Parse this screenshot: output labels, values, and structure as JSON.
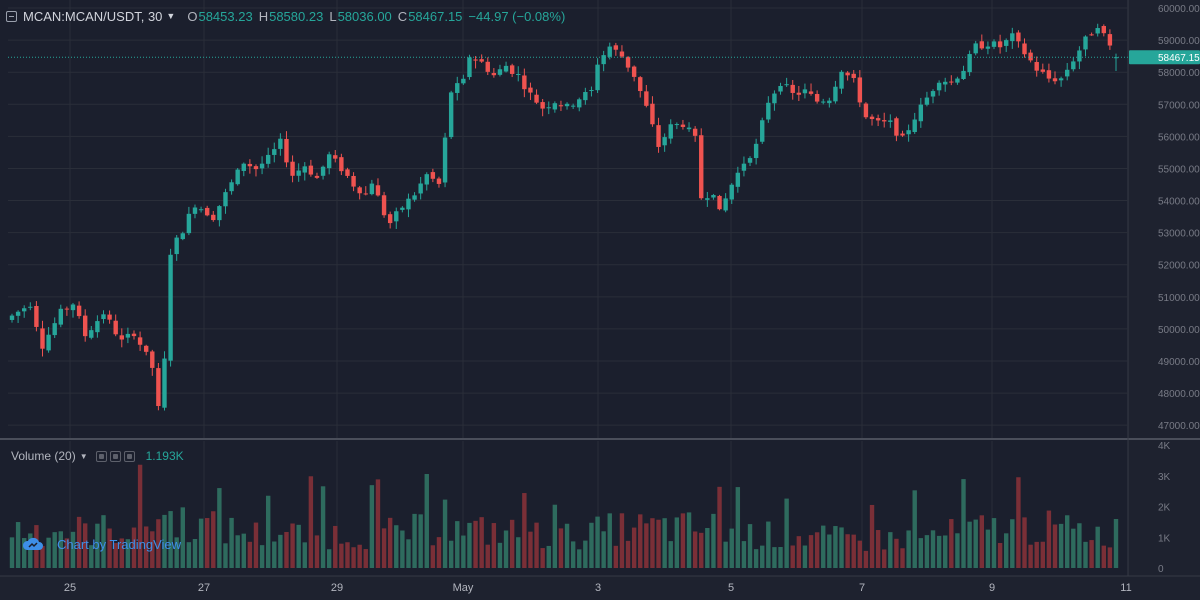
{
  "header": {
    "symbol": "MCAN:MCAN/USDT, 30",
    "open_label": "O",
    "open": "58453.23",
    "high_label": "H",
    "high": "58580.23",
    "low_label": "L",
    "low": "58036.00",
    "close_label": "C",
    "close": "58467.15",
    "change": "−44.97 (−0.08%)"
  },
  "volume_pane": {
    "title": "Volume (20)",
    "value": "1.193K"
  },
  "attribution": {
    "label": "Chart by TradingView"
  },
  "icons": {
    "symbol": "chart-symbol-icon",
    "caret": "chevron-down-icon",
    "attribution": "tradingview-cloud-icon",
    "pane_buttons": [
      "hide-icon",
      "settings-icon",
      "close-icon"
    ]
  },
  "colors": {
    "up": "#26a69a",
    "down": "#ef5350",
    "up_volume": "#2e6b5e",
    "down_volume": "#7a2f37",
    "background": "#1b1f2d",
    "grid": "#2a2e39",
    "last_price_line": "#26a69a"
  },
  "chart_data": {
    "type": "candlestick",
    "title": "MCAN:MCAN/USDT, 30",
    "x_tick_labels": [
      "25",
      "27",
      "29",
      "May",
      "3",
      "5",
      "7",
      "9",
      "11"
    ],
    "y_tick_labels": [
      "47000.00",
      "48000.00",
      "49000.00",
      "50000.00",
      "51000.00",
      "52000.00",
      "53000.00",
      "54000.00",
      "55000.00",
      "56000.00",
      "57000.00",
      "58000.00",
      "59000.00",
      "60000.00"
    ],
    "ylim": [
      46600,
      60250
    ],
    "volume_tick_labels": [
      "0",
      "1K",
      "2K",
      "3K",
      "4K"
    ],
    "volume_ylim": [
      0,
      4000
    ],
    "last_price": 58467.15,
    "last_price_label": "58467.15",
    "grid": true,
    "price_path": [
      [
        0,
        50400
      ],
      [
        3,
        50800
      ],
      [
        5,
        49500
      ],
      [
        8,
        50500
      ],
      [
        10,
        50800
      ],
      [
        12,
        49800
      ],
      [
        15,
        50500
      ],
      [
        18,
        49600
      ],
      [
        20,
        49900
      ],
      [
        23,
        48800
      ],
      [
        24,
        47500
      ],
      [
        25,
        49000
      ],
      [
        26,
        52400
      ],
      [
        28,
        53100
      ],
      [
        30,
        53900
      ],
      [
        33,
        53500
      ],
      [
        35,
        54200
      ],
      [
        38,
        55200
      ],
      [
        40,
        55000
      ],
      [
        42,
        55300
      ],
      [
        44,
        55800
      ],
      [
        46,
        54800
      ],
      [
        48,
        55100
      ],
      [
        50,
        54700
      ],
      [
        52,
        55400
      ],
      [
        54,
        55000
      ],
      [
        56,
        54500
      ],
      [
        58,
        54200
      ],
      [
        59,
        54600
      ],
      [
        61,
        53600
      ],
      [
        62,
        53300
      ],
      [
        64,
        53800
      ],
      [
        66,
        54200
      ],
      [
        68,
        54800
      ],
      [
        70,
        54500
      ],
      [
        71,
        55900
      ],
      [
        72,
        57400
      ],
      [
        74,
        57700
      ],
      [
        75,
        58500
      ],
      [
        77,
        58300
      ],
      [
        79,
        57900
      ],
      [
        81,
        58200
      ],
      [
        83,
        57900
      ],
      [
        85,
        57300
      ],
      [
        87,
        56900
      ],
      [
        89,
        57100
      ],
      [
        91,
        56900
      ],
      [
        93,
        57200
      ],
      [
        95,
        57400
      ],
      [
        96,
        58300
      ],
      [
        98,
        58800
      ],
      [
        100,
        58500
      ],
      [
        102,
        57900
      ],
      [
        104,
        56900
      ],
      [
        106,
        55700
      ],
      [
        108,
        56300
      ],
      [
        110,
        56400
      ],
      [
        112,
        55900
      ],
      [
        113,
        54100
      ],
      [
        115,
        54300
      ],
      [
        116,
        53600
      ],
      [
        118,
        54500
      ],
      [
        120,
        55200
      ],
      [
        122,
        55700
      ],
      [
        124,
        57100
      ],
      [
        126,
        57700
      ],
      [
        128,
        57300
      ],
      [
        130,
        57400
      ],
      [
        132,
        57100
      ],
      [
        134,
        57200
      ],
      [
        136,
        58100
      ],
      [
        138,
        57700
      ],
      [
        140,
        56600
      ],
      [
        142,
        56400
      ],
      [
        144,
        56400
      ],
      [
        146,
        55900
      ],
      [
        148,
        56600
      ],
      [
        150,
        57200
      ],
      [
        152,
        57800
      ],
      [
        154,
        57700
      ],
      [
        156,
        58100
      ],
      [
        158,
        58800
      ],
      [
        160,
        58900
      ],
      [
        162,
        58800
      ],
      [
        164,
        59100
      ],
      [
        166,
        58600
      ],
      [
        168,
        58100
      ],
      [
        170,
        57800
      ],
      [
        172,
        57800
      ],
      [
        174,
        58400
      ],
      [
        176,
        59000
      ],
      [
        178,
        59500
      ],
      [
        180,
        58800
      ],
      [
        181,
        58467
      ]
    ],
    "volume_profile": [
      [
        0,
        1300
      ],
      [
        10,
        1200
      ],
      [
        20,
        1300
      ],
      [
        25,
        1700
      ],
      [
        30,
        1400
      ],
      [
        40,
        1100
      ],
      [
        50,
        1100
      ],
      [
        60,
        1100
      ],
      [
        70,
        1300
      ],
      [
        75,
        1200
      ],
      [
        80,
        1200
      ],
      [
        90,
        1000
      ],
      [
        100,
        1300
      ],
      [
        110,
        1300
      ],
      [
        115,
        1300
      ],
      [
        120,
        1100
      ],
      [
        130,
        1000
      ],
      [
        140,
        900
      ],
      [
        150,
        1000
      ],
      [
        160,
        1300
      ],
      [
        170,
        1300
      ],
      [
        180,
        1100
      ],
      [
        181,
        1193
      ]
    ]
  }
}
